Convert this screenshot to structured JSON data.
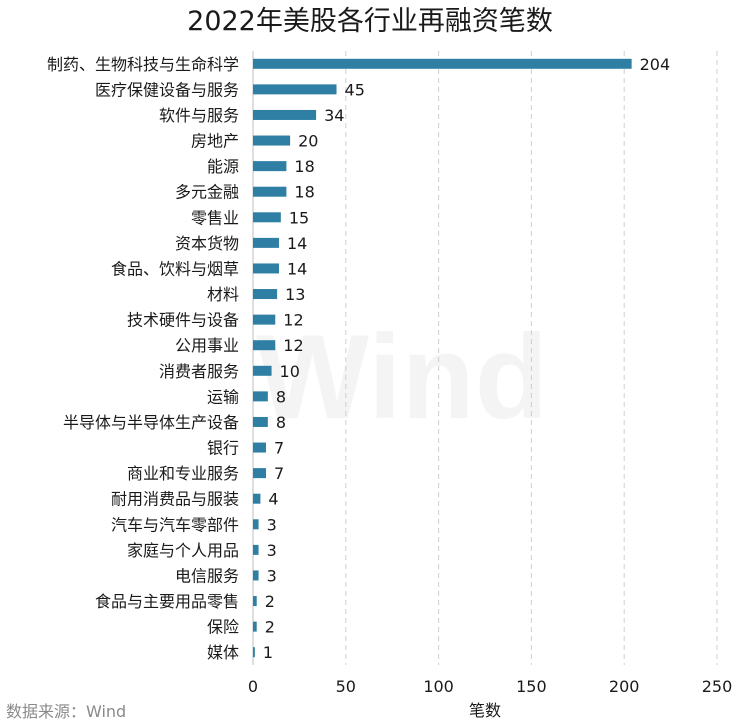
{
  "chart_data": {
    "type": "bar",
    "orientation": "horizontal",
    "title": "2022年美股各行业再融资笔数",
    "xlabel": "笔数",
    "ylabel": "",
    "xlim": [
      0,
      250
    ],
    "xticks": [
      0,
      50,
      100,
      150,
      200,
      250
    ],
    "grid": true,
    "bar_color": "#2e7fa3",
    "categories": [
      "制药、生物科技与生命科学",
      "医疗保健设备与服务",
      "软件与服务",
      "房地产",
      "能源",
      "多元金融",
      "零售业",
      "资本货物",
      "食品、饮料与烟草",
      "材料",
      "技术硬件与设备",
      "公用事业",
      "消费者服务",
      "运输",
      "半导体与半导体生产设备",
      "银行",
      "商业和专业服务",
      "耐用消费品与服装",
      "汽车与汽车零部件",
      "家庭与个人用品",
      "电信服务",
      "食品与主要用品零售",
      "保险",
      "媒体"
    ],
    "values": [
      204,
      45,
      34,
      20,
      18,
      18,
      15,
      14,
      14,
      13,
      12,
      12,
      10,
      8,
      8,
      7,
      7,
      4,
      3,
      3,
      3,
      2,
      2,
      1
    ]
  },
  "source_text": "数据来源：Wind",
  "watermark_text": "Wind"
}
